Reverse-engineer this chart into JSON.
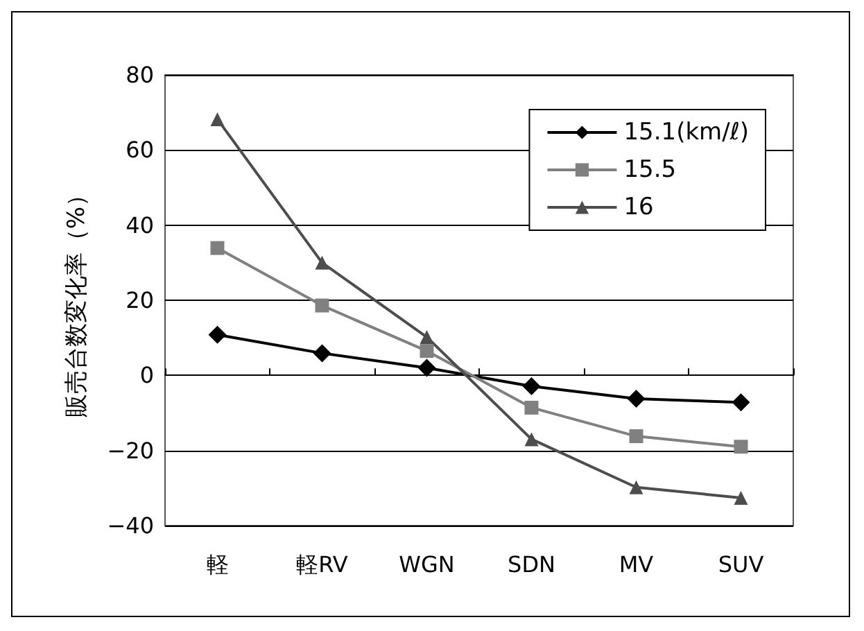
{
  "chart_data": {
    "type": "line",
    "ylabel": "販売台数変化率（%）",
    "categories": [
      "軽",
      "軽RV",
      "WGN",
      "SDN",
      "MV",
      "SUV"
    ],
    "series": [
      {
        "name": "15.1(km/ℓ)",
        "color": "#000000",
        "marker": "diamond",
        "values": [
          10.8,
          5.9,
          2,
          -2.9,
          -6.2,
          -7.2
        ]
      },
      {
        "name": "15.5",
        "color": "#808080",
        "marker": "square",
        "values": [
          33.9,
          18.6,
          6.5,
          -8.6,
          -16.2,
          -19
        ]
      },
      {
        "name": "16",
        "color": "#4d4d4d",
        "marker": "triangle",
        "values": [
          68.2,
          30,
          10.2,
          -17,
          -29.8,
          -32.6
        ]
      }
    ],
    "ylim": [
      -40,
      80
    ],
    "yticks": [
      -40,
      -20,
      0,
      20,
      40,
      60,
      80
    ],
    "grid": "y",
    "legend": "top right"
  }
}
